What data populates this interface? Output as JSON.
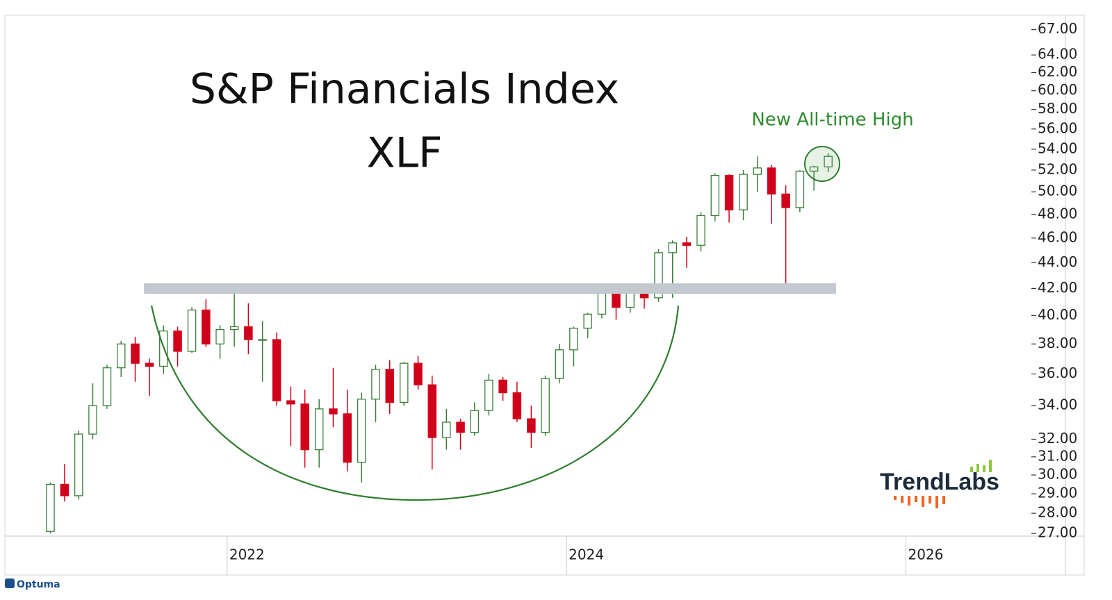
{
  "chart_data": {
    "type": "candlestick",
    "title": "S&P Financials Index",
    "subtitle": "XLF",
    "annotation": "New All-time High",
    "log_scale": true,
    "up_color": "#3a7d3a",
    "down_color": "#d0021b",
    "band_color": "#c4c8cf",
    "band": [
      41.6,
      42.4
    ],
    "x": [
      2020.958,
      2021.042,
      2021.125,
      2021.208,
      2021.292,
      2021.375,
      2021.458,
      2021.542,
      2021.625,
      2021.708,
      2021.792,
      2021.875,
      2021.958,
      2022.042,
      2022.125,
      2022.208,
      2022.292,
      2022.375,
      2022.458,
      2022.542,
      2022.625,
      2022.708,
      2022.792,
      2022.875,
      2022.958,
      2023.042,
      2023.125,
      2023.208,
      2023.292,
      2023.375,
      2023.458,
      2023.542,
      2023.625,
      2023.708,
      2023.792,
      2023.875,
      2023.958,
      2024.042,
      2024.125,
      2024.208,
      2024.292,
      2024.375,
      2024.458,
      2024.542,
      2024.625,
      2024.708,
      2024.792,
      2024.875,
      2024.958,
      2025.042,
      2025.125,
      2025.208,
      2025.292,
      2025.375,
      2025.458,
      2025.542
    ],
    "open": [
      27.1,
      29.5,
      28.9,
      32.3,
      34.0,
      36.4,
      38.0,
      36.7,
      36.5,
      38.9,
      37.5,
      40.4,
      38.0,
      39.0,
      39.2,
      38.3,
      38.3,
      34.3,
      34.1,
      31.4,
      33.8,
      33.5,
      30.7,
      34.4,
      36.3,
      34.2,
      36.7,
      35.3,
      32.1,
      33.0,
      32.4,
      33.7,
      35.6,
      34.8,
      33.2,
      32.4,
      35.7,
      37.6,
      39.1,
      40.1,
      42.1,
      40.6,
      41.8,
      41.3,
      44.8,
      45.6,
      45.4,
      47.9,
      51.5,
      48.4,
      51.6,
      52.2,
      49.8,
      48.6,
      51.9,
      52.3
    ],
    "high": [
      29.6,
      30.6,
      32.5,
      35.4,
      36.6,
      38.2,
      38.5,
      37.0,
      39.3,
      39.2,
      40.6,
      41.2,
      39.3,
      41.7,
      40.9,
      39.6,
      38.8,
      35.2,
      35.0,
      34.4,
      36.4,
      35.0,
      34.8,
      36.6,
      36.9,
      36.8,
      37.2,
      35.9,
      33.8,
      33.2,
      34.2,
      36.0,
      35.8,
      35.5,
      34.0,
      35.9,
      38.0,
      39.2,
      40.2,
      42.2,
      42.4,
      42.2,
      42.0,
      45.1,
      45.8,
      46.1,
      48.2,
      51.7,
      51.6,
      52.0,
      53.3,
      52.5,
      50.6,
      52.0,
      52.4,
      53.6
    ],
    "low": [
      27.0,
      28.6,
      28.7,
      32.0,
      33.8,
      35.8,
      35.5,
      34.6,
      36.0,
      36.5,
      37.4,
      37.8,
      37.0,
      37.8,
      37.3,
      35.5,
      34.0,
      31.6,
      30.4,
      30.4,
      32.7,
      30.2,
      29.6,
      33.0,
      33.5,
      34.0,
      35.0,
      30.3,
      31.4,
      31.4,
      32.2,
      33.4,
      34.3,
      33.0,
      31.5,
      32.2,
      35.4,
      36.5,
      38.4,
      39.8,
      39.7,
      40.2,
      40.5,
      41.0,
      41.3,
      43.6,
      44.9,
      47.4,
      47.3,
      47.5,
      50.0,
      47.2,
      42.2,
      48.2,
      50.1,
      51.8
    ],
    "close": [
      29.5,
      28.9,
      32.3,
      34.0,
      36.4,
      38.0,
      36.7,
      36.5,
      38.9,
      37.5,
      40.4,
      38.0,
      39.0,
      39.2,
      38.3,
      38.3,
      34.3,
      34.1,
      31.4,
      33.8,
      33.5,
      30.7,
      34.4,
      36.3,
      34.2,
      36.7,
      35.3,
      32.1,
      33.0,
      32.4,
      33.7,
      35.6,
      34.8,
      33.2,
      32.4,
      35.7,
      37.6,
      39.1,
      40.1,
      42.1,
      40.6,
      41.8,
      41.3,
      44.8,
      45.6,
      45.4,
      47.9,
      51.5,
      48.4,
      51.6,
      52.2,
      49.8,
      48.6,
      51.9,
      52.3,
      53.3
    ],
    "xlim": [
      2020.69,
      2026.94
    ],
    "xticks": [
      2022,
      2024,
      2026
    ],
    "ylim": [
      26.87,
      68.75
    ],
    "yticks": [
      {
        "value": 27,
        "label": "27.00"
      },
      {
        "value": 28,
        "label": "28.00"
      },
      {
        "value": 29,
        "label": "29.00"
      },
      {
        "value": 30,
        "label": "30.00"
      },
      {
        "value": 31,
        "label": "31.00"
      },
      {
        "value": 32,
        "label": "32.00"
      },
      {
        "value": 34,
        "label": "34.00"
      },
      {
        "value": 36,
        "label": "36.00"
      },
      {
        "value": 38,
        "label": "38.00"
      },
      {
        "value": 40,
        "label": "40.00"
      },
      {
        "value": 42,
        "label": "42.00"
      },
      {
        "value": 44,
        "label": "44.00"
      },
      {
        "value": 46,
        "label": "46.00"
      },
      {
        "value": 48,
        "label": "48.00"
      },
      {
        "value": 50,
        "label": "50.00"
      },
      {
        "value": 52,
        "label": "52.00"
      },
      {
        "value": 54,
        "label": "54.00"
      },
      {
        "value": 56,
        "label": "56.00"
      },
      {
        "value": 58,
        "label": "58.00"
      },
      {
        "value": 60,
        "label": "60.00"
      },
      {
        "value": 62,
        "label": "62.00"
      },
      {
        "value": 64,
        "label": "64.00"
      },
      {
        "value": 67,
        "label": "67.00"
      }
    ]
  },
  "logo": "TrendLabs",
  "footer": "Optuma"
}
